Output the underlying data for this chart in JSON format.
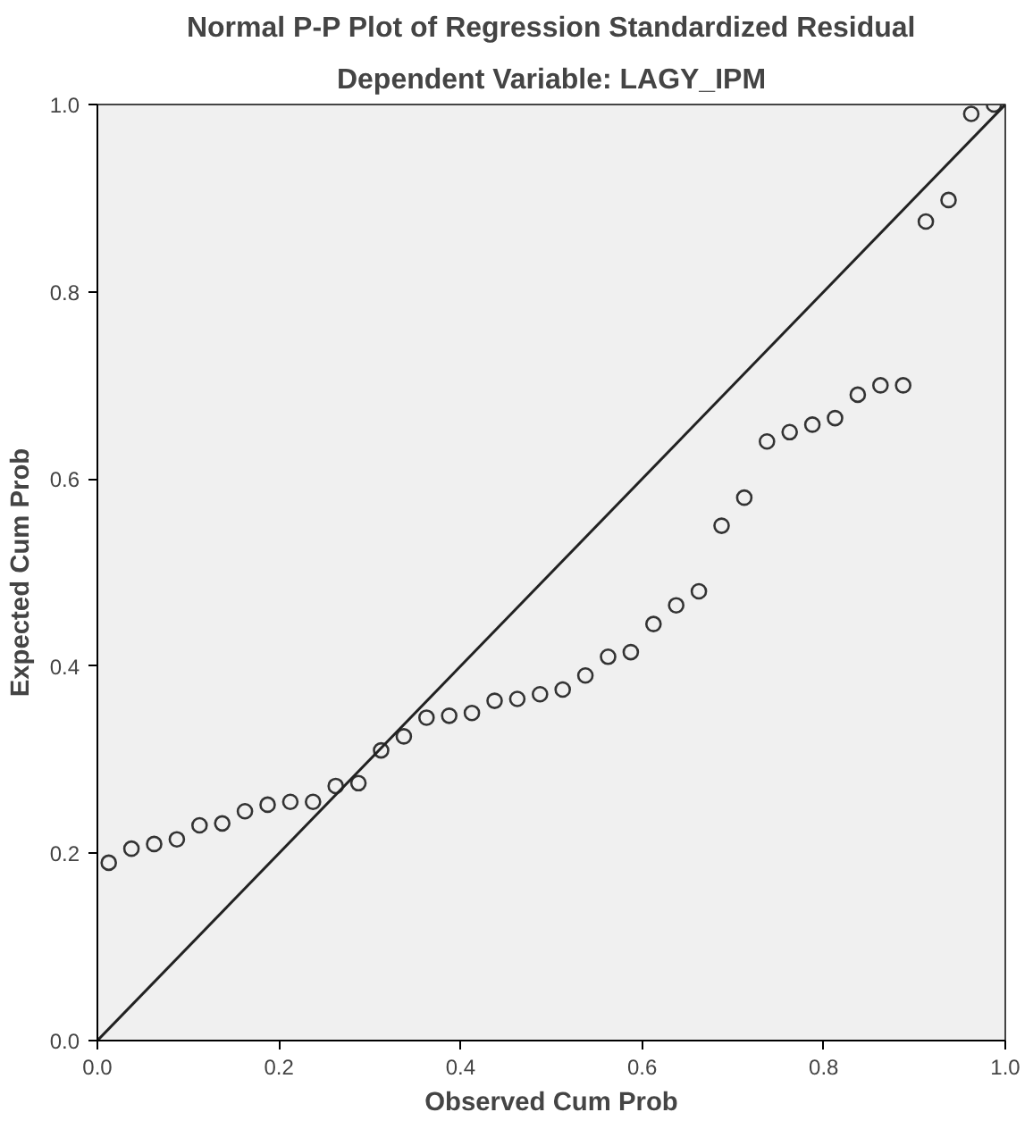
{
  "chart_data": {
    "type": "scatter",
    "title": "Normal P-P Plot of Regression Standardized Residual",
    "subtitle": "Dependent Variable: LAGY_IPM",
    "xlabel": "Observed Cum Prob",
    "ylabel": "Expected Cum Prob",
    "xlim": [
      0,
      1
    ],
    "ylim": [
      0,
      1
    ],
    "xticks": [
      {
        "value": 0,
        "label": "0.0"
      },
      {
        "value": 0.2,
        "label": "0.2"
      },
      {
        "value": 0.4,
        "label": "0.4"
      },
      {
        "value": 0.6,
        "label": "0.6"
      },
      {
        "value": 0.8,
        "label": "0.8"
      },
      {
        "value": 1,
        "label": "1.0"
      }
    ],
    "yticks": [
      {
        "value": 0,
        "label": "0.0"
      },
      {
        "value": 0.2,
        "label": "0.2"
      },
      {
        "value": 0.4,
        "label": "0.4"
      },
      {
        "value": 0.6,
        "label": "0.6"
      },
      {
        "value": 0.8,
        "label": "0.8"
      },
      {
        "value": 1,
        "label": "1.0"
      }
    ],
    "grid": false,
    "series": [
      {
        "marker": "circle",
        "color": "#333333",
        "x": [
          0.0125,
          0.0375,
          0.0625,
          0.0875,
          0.1125,
          0.1375,
          0.1625,
          0.1875,
          0.2125,
          0.2375,
          0.2625,
          0.2875,
          0.3125,
          0.3375,
          0.3625,
          0.3875,
          0.4125,
          0.4375,
          0.4625,
          0.4875,
          0.5125,
          0.5375,
          0.5625,
          0.5875,
          0.6125,
          0.6375,
          0.6625,
          0.6875,
          0.7125,
          0.7375,
          0.7625,
          0.7875,
          0.8125,
          0.8375,
          0.8625,
          0.8875,
          0.9125,
          0.9375,
          0.9625,
          0.9875
        ],
        "values": [
          0.19,
          0.205,
          0.21,
          0.215,
          0.23,
          0.232,
          0.245,
          0.252,
          0.255,
          0.255,
          0.272,
          0.275,
          0.31,
          0.325,
          0.345,
          0.347,
          0.35,
          0.363,
          0.365,
          0.37,
          0.375,
          0.39,
          0.41,
          0.415,
          0.445,
          0.465,
          0.48,
          0.55,
          0.58,
          0.64,
          0.65,
          0.658,
          0.665,
          0.69,
          0.7,
          0.7,
          0.875,
          0.898,
          0.99,
          1.0
        ]
      },
      {
        "type": "line",
        "color": "#222222",
        "x": [
          0,
          1
        ],
        "values": [
          0,
          1
        ]
      }
    ]
  }
}
